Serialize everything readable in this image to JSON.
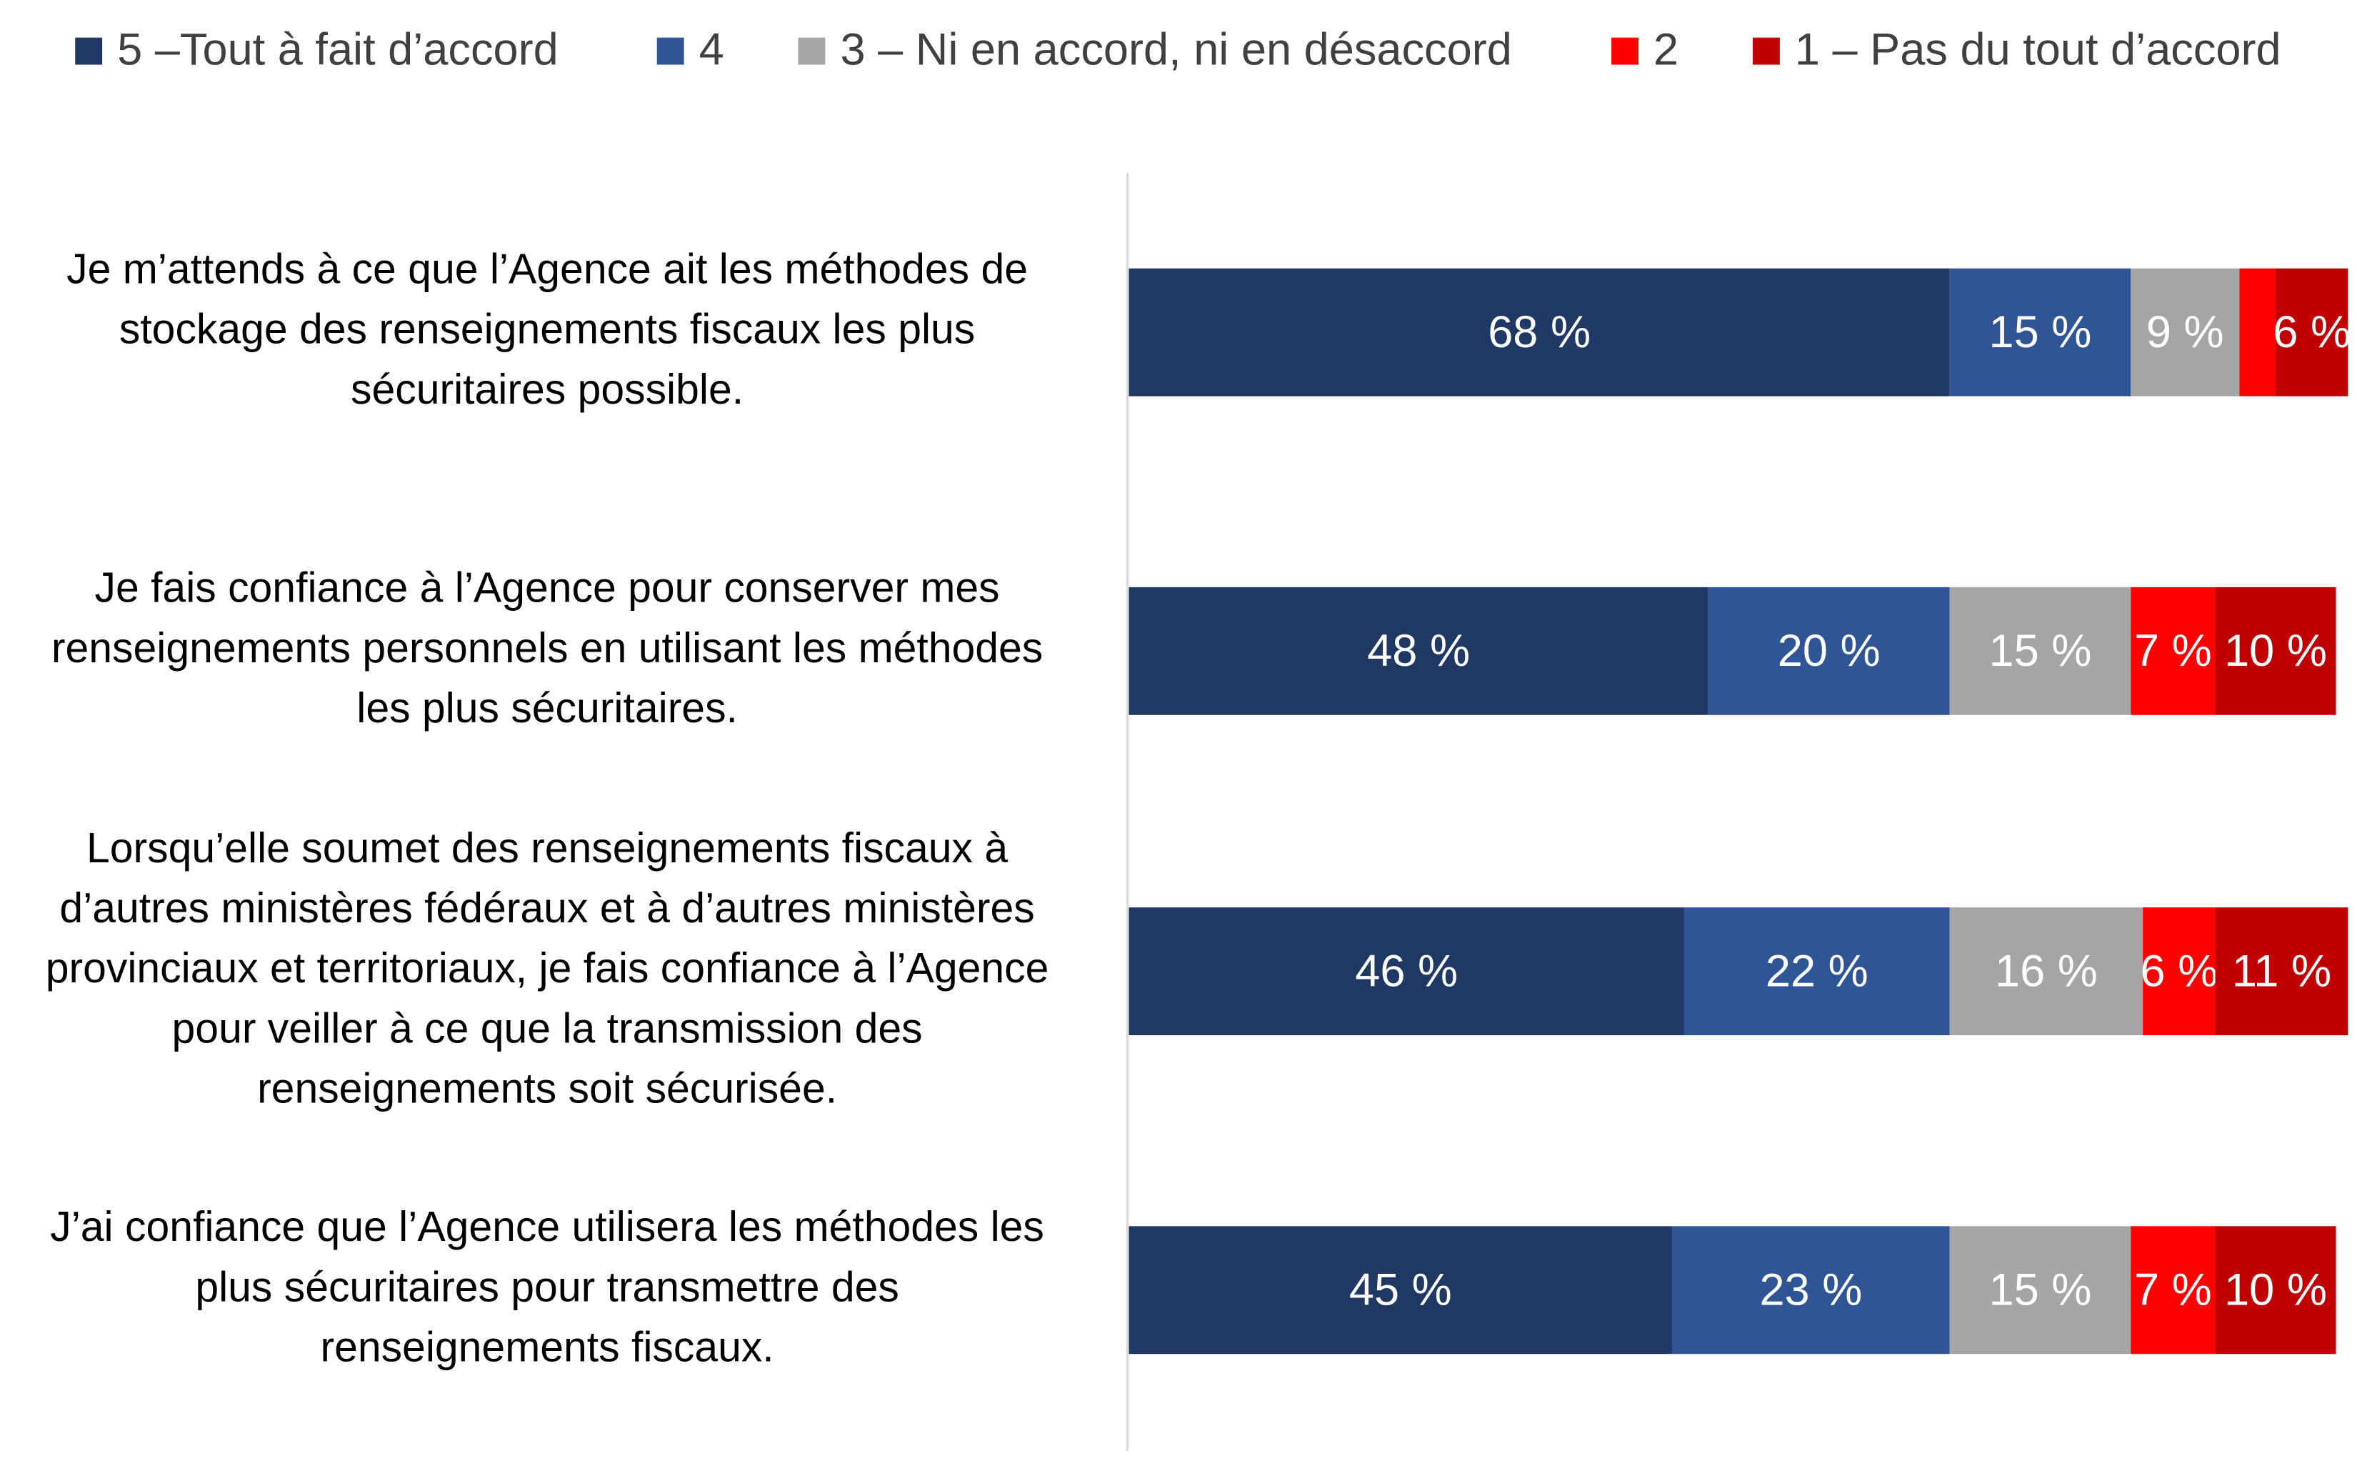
{
  "chart_data": {
    "type": "stacked_barh",
    "categories": [
      [
        "Je m’attends à ce que l’Agence ait les méthodes de",
        "stockage des renseignements fiscaux les plus",
        "sécuritaires possible."
      ],
      [
        "Je fais confiance à l’Agence pour conserver mes",
        "renseignements personnels en utilisant les méthodes",
        "les plus sécuritaires."
      ],
      [
        "Lorsqu’elle soumet des renseignements fiscaux à",
        "d’autres ministères fédéraux et à d’autres ministères",
        "provinciaux et territoriaux, je fais confiance à l’Agence",
        "pour veiller à ce que la transmission des",
        "renseignements soit sécurisée."
      ],
      [
        "J’ai confiance que l’Agence utilisera les méthodes les",
        "plus sécuritaires pour transmettre des",
        "renseignements fiscaux."
      ]
    ],
    "series": [
      {
        "name": "5 –Tout à fait d’accord",
        "color": "#203864",
        "values": [
          68,
          48,
          46,
          45
        ],
        "value_labels": [
          "68 %",
          "48 %",
          "46 %",
          "45 %"
        ]
      },
      {
        "name": "4",
        "color": "#2f5597",
        "values": [
          15,
          20,
          22,
          23
        ],
        "value_labels": [
          "15 %",
          "20 %",
          "22 %",
          "23 %"
        ]
      },
      {
        "name": "3 – Ni en accord, ni en désaccord",
        "color": "#a5a5a5",
        "values": [
          9,
          15,
          16,
          15
        ],
        "value_labels": [
          "9 %",
          "15 %",
          "16 %",
          "15 %"
        ]
      },
      {
        "name": "2",
        "color": "#ff0000",
        "values": [
          3,
          7,
          6,
          7
        ],
        "value_labels": [
          null,
          "7 %",
          "6 %",
          "7 %"
        ]
      },
      {
        "name": "1 – Pas du tout d’accord",
        "color": "#c00000",
        "values": [
          6,
          10,
          11,
          10
        ],
        "value_labels": [
          "6 %",
          "10 %",
          "11 %",
          "10 %"
        ]
      }
    ],
    "xlim": [
      0,
      100
    ],
    "legend": "top"
  }
}
